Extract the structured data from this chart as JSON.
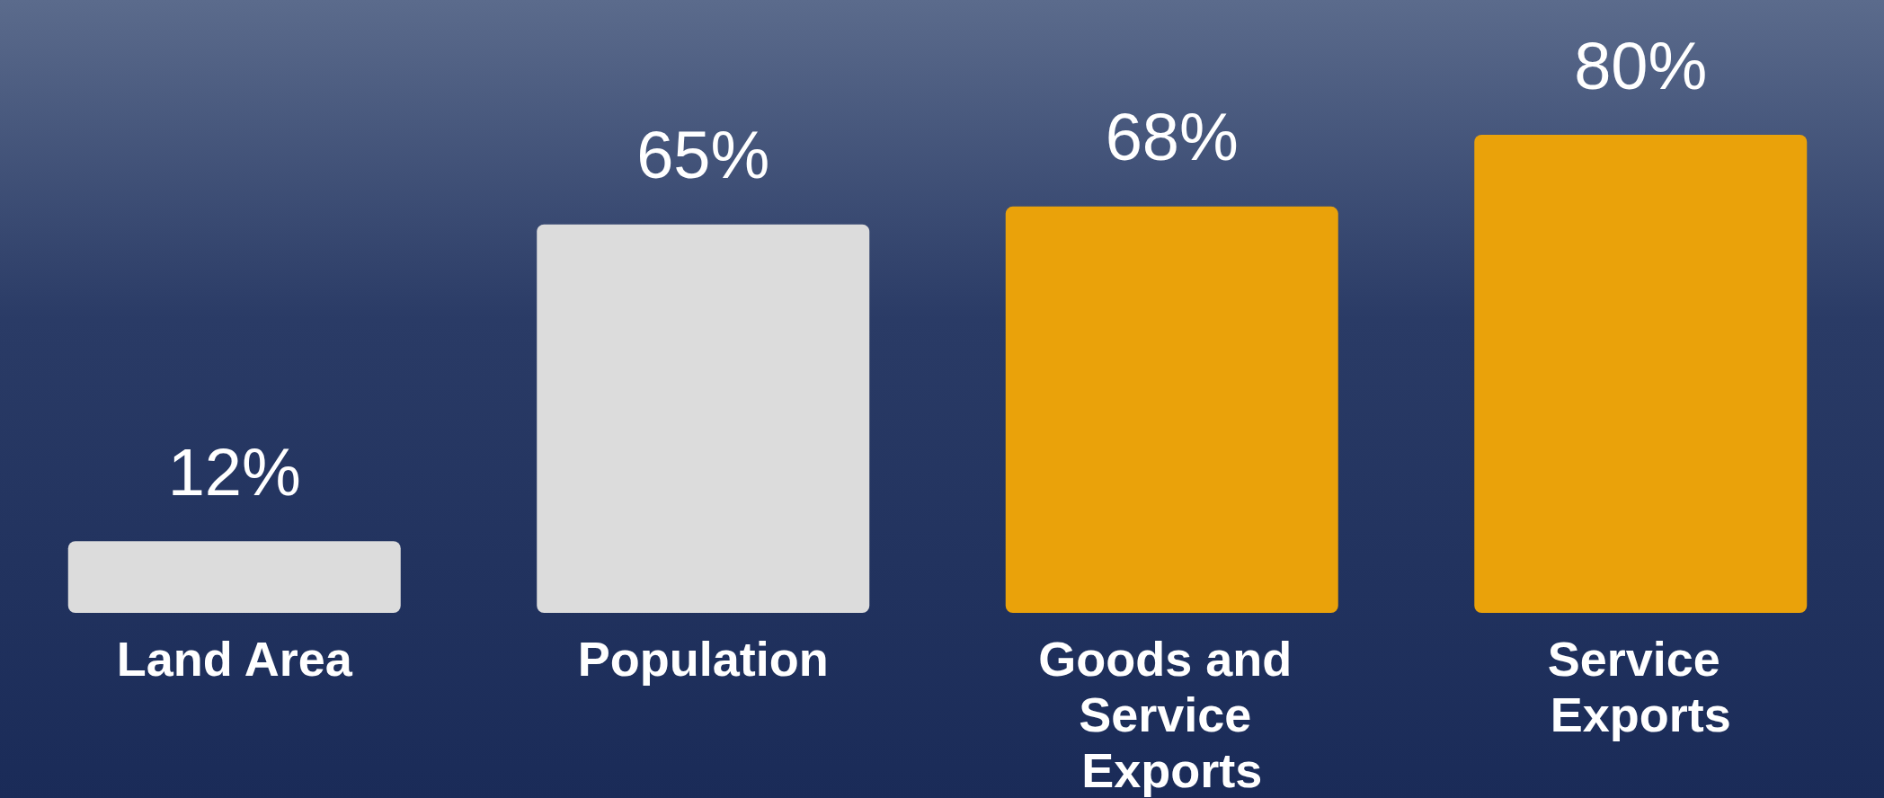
{
  "chart_data": {
    "type": "bar",
    "categories": [
      "Land Area",
      "Population",
      "Goods and Service Exports",
      "Service Exports"
    ],
    "values": [
      12,
      65,
      68,
      80
    ],
    "colors": [
      "#dcdcdc",
      "#dcdcdc",
      "#eaa20a",
      "#eaa20a"
    ],
    "value_labels": [
      "12%",
      "65%",
      "68%",
      "80%"
    ]
  }
}
